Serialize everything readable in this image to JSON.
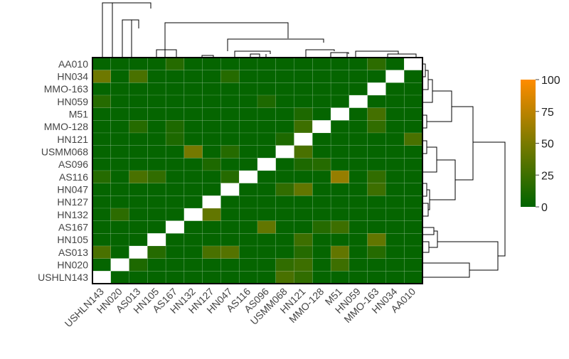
{
  "chart_data": {
    "type": "heatmap",
    "title": "",
    "xlabel": "",
    "ylabel": "",
    "x_labels": [
      "USHLN143",
      "HN020",
      "AS013",
      "HN105",
      "AS167",
      "HN132",
      "HN127",
      "HN047",
      "AS116",
      "AS096",
      "USMM068",
      "HN121",
      "MMO-128",
      "M51",
      "HN059",
      "MMO-163",
      "HN034",
      "AA010"
    ],
    "y_labels": [
      "AA010",
      "HN034",
      "MMO-163",
      "HN059",
      "M51",
      "MMO-128",
      "HN121",
      "USMM068",
      "AS096",
      "AS116",
      "HN047",
      "HN127",
      "HN132",
      "AS167",
      "HN105",
      "AS013",
      "HN020",
      "USHLN143"
    ],
    "values": [
      [
        2,
        2,
        2,
        2,
        15,
        2,
        2,
        2,
        2,
        2,
        2,
        2,
        2,
        2,
        2,
        18,
        2,
        null
      ],
      [
        45,
        2,
        30,
        2,
        2,
        2,
        2,
        15,
        2,
        2,
        2,
        2,
        2,
        2,
        2,
        2,
        null,
        2
      ],
      [
        2,
        2,
        2,
        2,
        2,
        2,
        2,
        2,
        2,
        2,
        2,
        2,
        2,
        2,
        2,
        null,
        2,
        2
      ],
      [
        15,
        2,
        2,
        2,
        2,
        2,
        2,
        2,
        2,
        12,
        2,
        2,
        2,
        2,
        null,
        2,
        2,
        2
      ],
      [
        2,
        2,
        2,
        2,
        2,
        2,
        2,
        2,
        2,
        2,
        2,
        12,
        2,
        null,
        2,
        28,
        2,
        2
      ],
      [
        2,
        2,
        15,
        2,
        12,
        2,
        2,
        2,
        2,
        2,
        2,
        25,
        null,
        2,
        2,
        20,
        2,
        2
      ],
      [
        2,
        2,
        2,
        2,
        12,
        2,
        2,
        2,
        2,
        2,
        12,
        null,
        2,
        2,
        2,
        2,
        2,
        30
      ],
      [
        2,
        2,
        2,
        2,
        2,
        48,
        2,
        15,
        2,
        2,
        null,
        30,
        2,
        2,
        2,
        2,
        2,
        2
      ],
      [
        2,
        2,
        2,
        2,
        2,
        2,
        12,
        2,
        2,
        null,
        2,
        12,
        15,
        2,
        2,
        2,
        2,
        2
      ],
      [
        15,
        2,
        30,
        20,
        2,
        2,
        2,
        15,
        null,
        2,
        2,
        2,
        2,
        60,
        2,
        20,
        2,
        2
      ],
      [
        2,
        2,
        2,
        2,
        2,
        2,
        2,
        null,
        2,
        2,
        20,
        40,
        2,
        2,
        2,
        25,
        2,
        2
      ],
      [
        2,
        2,
        2,
        2,
        2,
        2,
        null,
        2,
        2,
        2,
        2,
        2,
        2,
        2,
        2,
        2,
        2,
        2
      ],
      [
        2,
        18,
        2,
        2,
        2,
        null,
        40,
        2,
        2,
        2,
        2,
        2,
        2,
        2,
        2,
        2,
        2,
        2
      ],
      [
        2,
        2,
        2,
        2,
        null,
        2,
        2,
        2,
        2,
        40,
        2,
        2,
        15,
        25,
        2,
        2,
        2,
        2
      ],
      [
        2,
        2,
        2,
        null,
        2,
        2,
        2,
        2,
        2,
        2,
        2,
        25,
        2,
        2,
        2,
        40,
        2,
        2
      ],
      [
        30,
        2,
        null,
        15,
        2,
        2,
        30,
        35,
        2,
        2,
        2,
        15,
        2,
        40,
        2,
        15,
        2,
        2
      ],
      [
        2,
        null,
        12,
        2,
        2,
        2,
        2,
        2,
        2,
        2,
        20,
        25,
        2,
        25,
        2,
        2,
        2,
        2
      ],
      [
        null,
        2,
        2,
        2,
        2,
        2,
        2,
        2,
        2,
        2,
        30,
        20,
        2,
        2,
        2,
        2,
        2,
        2
      ]
    ],
    "colorscale": [
      [
        0,
        "#006400"
      ],
      [
        0.5,
        "#7a7a00"
      ],
      [
        1,
        "#ff8c00"
      ]
    ],
    "zlim": [
      0,
      100
    ],
    "colorbar": {
      "ticks": [
        0,
        25,
        50,
        75,
        100
      ],
      "labels": [
        "0",
        "25",
        "50",
        "75",
        "100"
      ],
      "placement": "right"
    },
    "dendrograms": {
      "top": true,
      "right": true
    },
    "grid": true
  }
}
